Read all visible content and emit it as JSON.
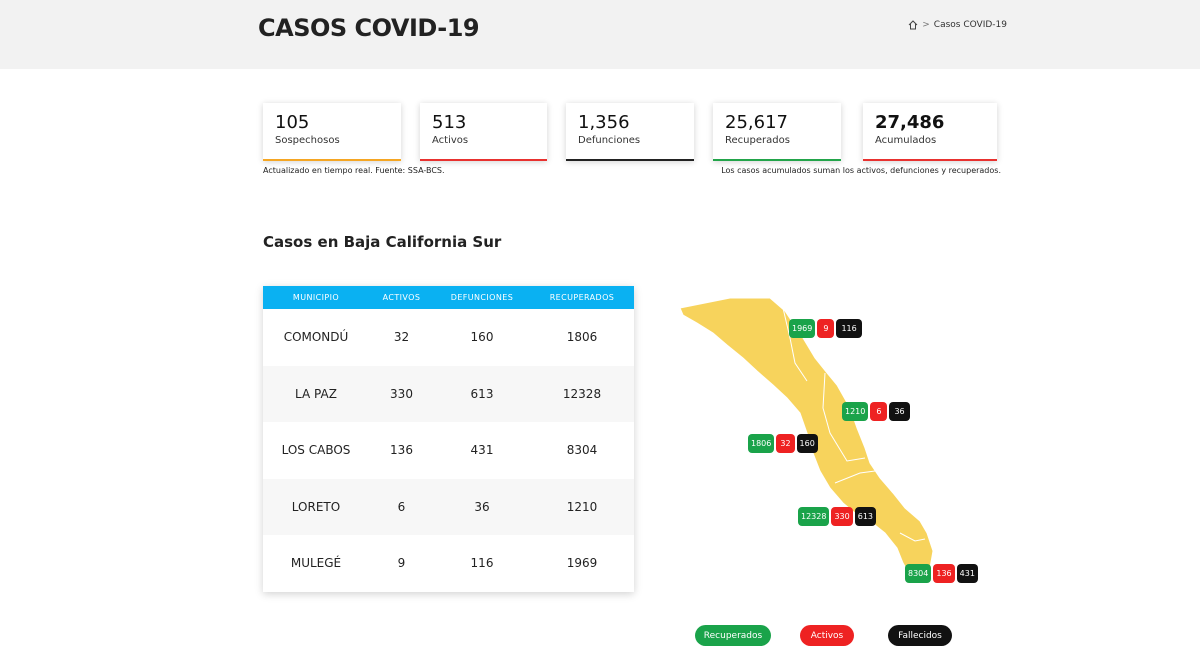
{
  "header": {
    "title": "CASOS COVID-19",
    "breadcrumb_current": "Casos COVID-19"
  },
  "stats": [
    {
      "value": "105",
      "label": "Sospechosos",
      "color": "#f5a623"
    },
    {
      "value": "513",
      "label": "Activos",
      "color": "#e8312f"
    },
    {
      "value": "1,356",
      "label": "Defunciones",
      "color": "#222222"
    },
    {
      "value": "25,617",
      "label": "Recuperados",
      "color": "#22a44a"
    },
    {
      "value": "27,486",
      "label": "Acumulados",
      "color": "#e8312f"
    }
  ],
  "notes": {
    "left": "Actualizado en tiempo real. Fuente: SSA-BCS.",
    "right": "Los casos acumulados suman los activos, defunciones y recuperados."
  },
  "section_title": "Casos en Baja California Sur",
  "table": {
    "headers": [
      "MUNICIPIO",
      "ACTIVOS",
      "DEFUNCIONES",
      "RECUPERADOS"
    ],
    "rows": [
      [
        "COMONDÚ",
        "32",
        "160",
        "1806"
      ],
      [
        "LA PAZ",
        "330",
        "613",
        "12328"
      ],
      [
        "LOS CABOS",
        "136",
        "431",
        "8304"
      ],
      [
        "LORETO",
        "6",
        "36",
        "1210"
      ],
      [
        "MULEGÉ",
        "9",
        "116",
        "1969"
      ]
    ]
  },
  "map_badges": [
    {
      "recuperados": "1969",
      "activos": "9",
      "fallecidos": "116"
    },
    {
      "recuperados": "1210",
      "activos": "6",
      "fallecidos": "36"
    },
    {
      "recuperados": "1806",
      "activos": "32",
      "fallecidos": "160"
    },
    {
      "recuperados": "12328",
      "activos": "330",
      "fallecidos": "613"
    },
    {
      "recuperados": "8304",
      "activos": "136",
      "fallecidos": "431"
    }
  ],
  "legend": {
    "recuperados": "Recuperados",
    "activos": "Activos",
    "fallecidos": "Fallecidos"
  },
  "colors": {
    "recuperados": "#1aa34a",
    "activos": "#ee2222",
    "fallecidos": "#111111",
    "map_fill": "#f7d35c",
    "table_header": "#0ab1f2"
  }
}
